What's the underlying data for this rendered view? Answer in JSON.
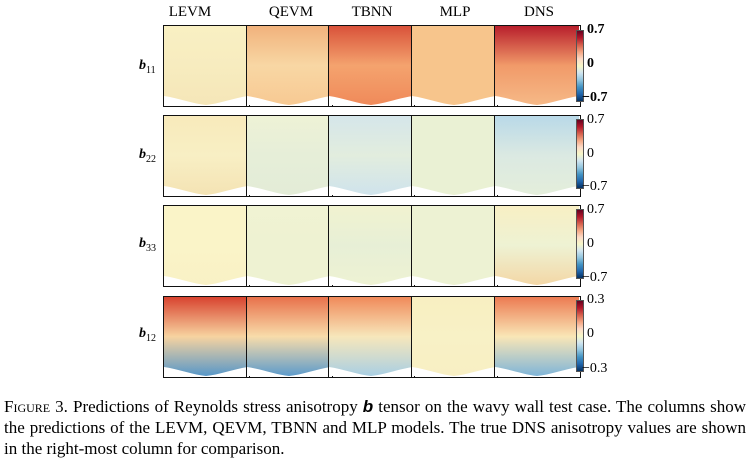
{
  "columns": [
    "LEVM",
    "QEVM",
    "TBNN",
    "MLP",
    "DNS"
  ],
  "rows": [
    {
      "symbol": "b",
      "sub": "11",
      "ticks": [
        "0.7",
        "0",
        "−0.7"
      ]
    },
    {
      "symbol": "b",
      "sub": "22",
      "ticks": [
        "0.7",
        "0",
        "−0.7"
      ]
    },
    {
      "symbol": "b",
      "sub": "33",
      "ticks": [
        "0.7",
        "0",
        "−0.7"
      ]
    },
    {
      "symbol": "b",
      "sub": "12",
      "ticks": [
        "0.3",
        "0",
        "−0.3"
      ]
    }
  ],
  "panel_palette": {
    "r0c0": [
      "#f9f0c3",
      "#f7ecbf",
      "#f5e6b8"
    ],
    "r0c1": [
      "#f1b27c",
      "#f8d7a4",
      "#f7c993"
    ],
    "r0c2": [
      "#d9523a",
      "#f4a36e",
      "#f08a5a"
    ],
    "r0c3": [
      "#f7c58c",
      "#f7c58c",
      "#f7c58c"
    ],
    "r0c4": [
      "#b81f2c",
      "#f19a69",
      "#f6b987"
    ],
    "r1c0": [
      "#f8eabb",
      "#f8efc4",
      "#f4e3b4"
    ],
    "r1c1": [
      "#eef2d6",
      "#e6eed8",
      "#e3ecd7"
    ],
    "r1c2": [
      "#d5e6ea",
      "#e2edde",
      "#cfe3ec"
    ],
    "r1c3": [
      "#eaf1d4",
      "#eaf1d4",
      "#eaf1d4"
    ],
    "r1c4": [
      "#b9d9e8",
      "#dbe9e2",
      "#e4eedb"
    ],
    "r2c0": [
      "#faf4c8",
      "#faf4c8",
      "#f9f1c5"
    ],
    "r2c1": [
      "#f0f3d3",
      "#eef2d2",
      "#eef2d2"
    ],
    "r2c2": [
      "#f1f3d0",
      "#e7efd6",
      "#eef2d3"
    ],
    "r2c3": [
      "#edf2d3",
      "#edf2d3",
      "#edf2d3"
    ],
    "r2c4": [
      "#f8efc4",
      "#eef2d3",
      "#f3d7a6"
    ],
    "r3c0": [
      "#d8432f",
      "#f7d3a0",
      "#5797c8"
    ],
    "r3c1": [
      "#e8714b",
      "#f8dcaa",
      "#5d9bcb"
    ],
    "r3c2": [
      "#f08a5a",
      "#f7e7bb",
      "#a9cfe3"
    ],
    "r3c3": [
      "#f8efc1",
      "#f8f1c6",
      "#f8efc3"
    ],
    "r3c4": [
      "#ec7b52",
      "#f9e6b6",
      "#7fb5d8"
    ]
  },
  "caption": {
    "label": "Figure 3.",
    "before": "Predictions of Reynolds stress anisotropy",
    "symbol": "b",
    "after": "tensor on the wavy wall test case. The columns show the predictions of the LEVM, QEVM, TBNN and MLP models. The true DNS anisotropy values are shown in the right-most column for comparison."
  }
}
